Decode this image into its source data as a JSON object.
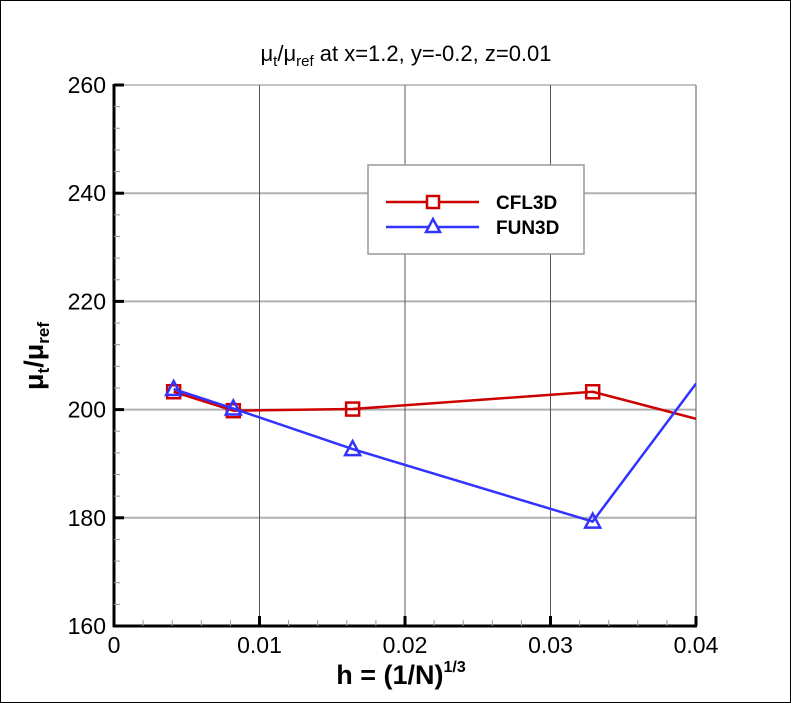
{
  "chart_data": {
    "type": "line",
    "title": {
      "main": "μ",
      "sub1": "t",
      "slash": "/μ",
      "sub2": "ref",
      "rest": " at x=1.2, y=-0.2, z=0.01"
    },
    "xlabel": {
      "main": "h = (1/N)",
      "sup": "1/3"
    },
    "ylabel": {
      "main": "μ",
      "sub1": "t",
      "slash": "/μ",
      "sub2": "ref"
    },
    "xlim": [
      0,
      0.04
    ],
    "ylim": [
      160,
      260
    ],
    "xticks": [
      0,
      0.01,
      0.02,
      0.03,
      0.04
    ],
    "xtick_labels": [
      "0",
      "0.01",
      "0.02",
      "0.03",
      "0.04"
    ],
    "yticks": [
      160,
      180,
      200,
      220,
      240,
      260
    ],
    "ytick_labels": [
      "160",
      "180",
      "200",
      "220",
      "240",
      "260"
    ],
    "grid": true,
    "legend_placement": "upper-center",
    "series": [
      {
        "name": "CFL3D",
        "color": "#cc0000",
        "marker": "square",
        "x": [
          0.0041,
          0.0082,
          0.0164,
          0.0329,
          0.04
        ],
        "y": [
          203.3,
          199.8,
          200.1,
          203.3,
          198.3
        ],
        "marker_count": 4
      },
      {
        "name": "FUN3D",
        "color": "#3333ff",
        "marker": "triangle",
        "x": [
          0.0041,
          0.0082,
          0.0164,
          0.0329,
          0.04
        ],
        "y": [
          203.8,
          200.2,
          192.7,
          179.3,
          204.8
        ],
        "marker_count": 4
      }
    ]
  }
}
